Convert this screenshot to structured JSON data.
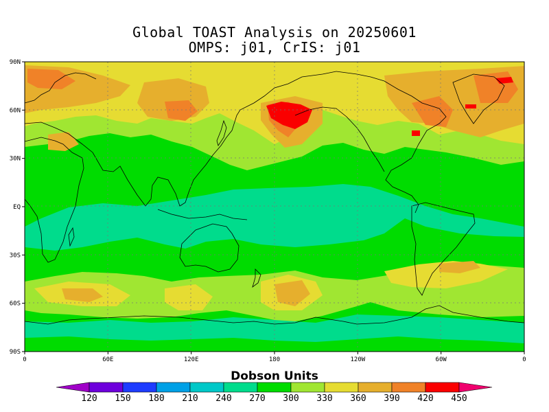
{
  "title": {
    "line1": "Global TOAST Analysis on 20250601",
    "line2": "OMPS: j01, CrIS: j01"
  },
  "map": {
    "lat_labels": [
      "90N",
      "60N",
      "30N",
      "EQ",
      "30S",
      "60S",
      "90S"
    ],
    "lon_labels": [
      "0",
      "60E",
      "120E",
      "180",
      "120W",
      "60W",
      "0"
    ],
    "lat_values": [
      90,
      60,
      30,
      0,
      -30,
      -60,
      -90
    ],
    "lon_values": [
      0,
      60,
      120,
      180,
      240,
      300,
      360
    ]
  },
  "colorbar": {
    "title": "Dobson Units",
    "labels": [
      "120",
      "150",
      "180",
      "210",
      "240",
      "270",
      "300",
      "330",
      "360",
      "390",
      "420",
      "450"
    ],
    "colors": [
      "#a000c8",
      "#6e00dc",
      "#1e3cff",
      "#00a0e6",
      "#00c8c8",
      "#00dc8c",
      "#00dc00",
      "#a0e632",
      "#e6dc32",
      "#e6af2d",
      "#f08228",
      "#fa0000",
      "#f0006e"
    ]
  },
  "field_colors": {
    "u270": "#00dc8c",
    "u300": "#00dc00",
    "u330": "#a0e632",
    "u360": "#e6dc32",
    "u390": "#e6af2d",
    "u420": "#f08228",
    "u450": "#fa0000"
  }
}
